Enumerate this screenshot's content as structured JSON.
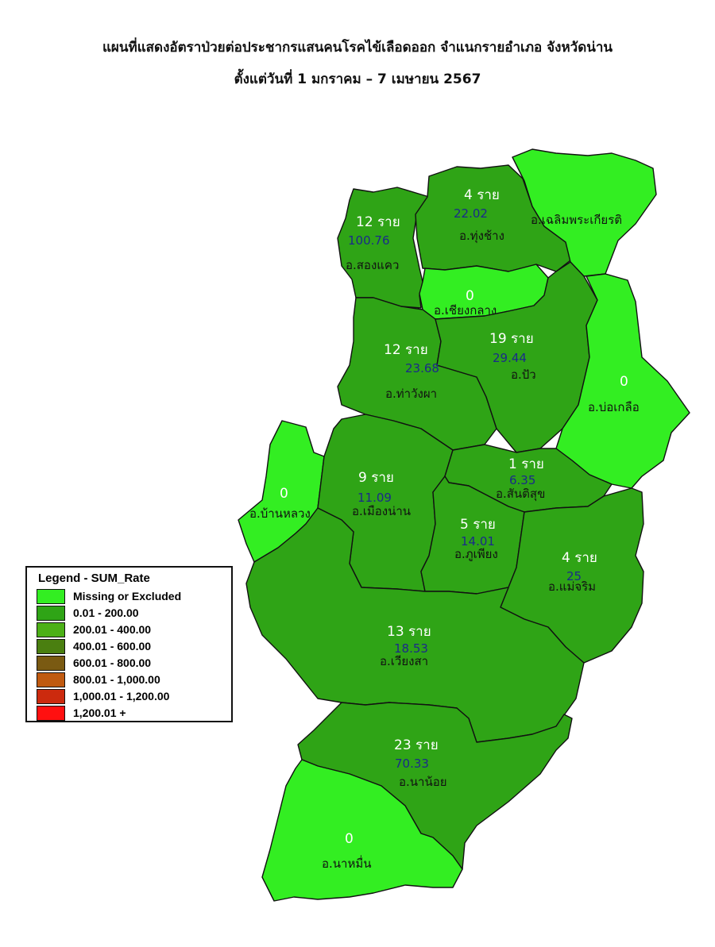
{
  "title": {
    "line1": "แผนที่แสดงอัตราป่วยต่อประชากรแสนคนโรคไข้เลือดออก จำแนกรายอำเภอ จังหวัดน่าน",
    "line2": "ตั้งแต่วันที่ 1 มกราคม – 7 เมษายน 2567"
  },
  "colors": {
    "missing": "#33ee22",
    "r1": "#2fa416",
    "r2": "#4cb017",
    "r3": "#4a7f10",
    "r4": "#7a5a12",
    "r5": "#c05a10",
    "r6": "#cc2a0e",
    "r7": "#ff1010"
  },
  "legend": {
    "title": "Legend - SUM_Rate",
    "items": [
      {
        "label": "Missing or Excluded",
        "color": "#33ee22"
      },
      {
        "label": "0.01 - 200.00",
        "color": "#2fa416"
      },
      {
        "label": "200.01 - 400.00",
        "color": "#4cb017"
      },
      {
        "label": "400.01 - 600.00",
        "color": "#4a7f10"
      },
      {
        "label": "600.01 - 800.00",
        "color": "#7a5a12"
      },
      {
        "label": "800.01 - 1,000.00",
        "color": "#c05a10"
      },
      {
        "label": "1,000.01 - 1,200.00",
        "color": "#cc2a0e"
      },
      {
        "label": "1,200.01 +",
        "color": "#ff1010"
      }
    ]
  },
  "districts": [
    {
      "id": "song-khwae",
      "name": "อ.สองแคว",
      "cases": "12 ราย",
      "rate": "100.76",
      "category": "r1"
    },
    {
      "id": "thung-chang",
      "name": "อ.ทุ่งช้าง",
      "cases": "4 ราย",
      "rate": "22.02",
      "category": "r1"
    },
    {
      "id": "chaloem-phra-kiat",
      "name": "อ.เฉลิมพระเกียรติ",
      "cases": "",
      "rate": "",
      "category": "missing"
    },
    {
      "id": "chiang-klang",
      "name": "อ.เชียงกลาง",
      "cases": "0",
      "rate": "",
      "category": "missing"
    },
    {
      "id": "tha-wang-pha",
      "name": "อ.ท่าวังผา",
      "cases": "12 ราย",
      "rate": "23.68",
      "category": "r1"
    },
    {
      "id": "pua",
      "name": "อ.ปัว",
      "cases": "19 ราย",
      "rate": "29.44",
      "category": "r1"
    },
    {
      "id": "bo-kluea",
      "name": "อ.บ่อเกลือ",
      "cases": "0",
      "rate": "",
      "category": "missing"
    },
    {
      "id": "ban-luang",
      "name": "อ.บ้านหลวง",
      "cases": "0",
      "rate": "",
      "category": "missing"
    },
    {
      "id": "mueang-nan",
      "name": "อ.เมืองน่าน",
      "cases": "9 ราย",
      "rate": "11.09",
      "category": "r1"
    },
    {
      "id": "santi-suk",
      "name": "อ.สันติสุข",
      "cases": "1 ราย",
      "rate": "6.35",
      "category": "r1"
    },
    {
      "id": "phu-phiang",
      "name": "อ.ภูเพียง",
      "cases": "5 ราย",
      "rate": "14.01",
      "category": "r1"
    },
    {
      "id": "mae-charim",
      "name": "อ.แม่จริม",
      "cases": "4 ราย",
      "rate": "25",
      "category": "r1"
    },
    {
      "id": "wiang-sa",
      "name": "อ.เวียงสา",
      "cases": "13 ราย",
      "rate": "18.53",
      "category": "r1"
    },
    {
      "id": "na-noi",
      "name": "อ.นาน้อย",
      "cases": "23 ราย",
      "rate": "70.33",
      "category": "r1"
    },
    {
      "id": "na-muen",
      "name": "อ.นาหมื่น",
      "cases": "0",
      "rate": "",
      "category": "missing"
    }
  ]
}
